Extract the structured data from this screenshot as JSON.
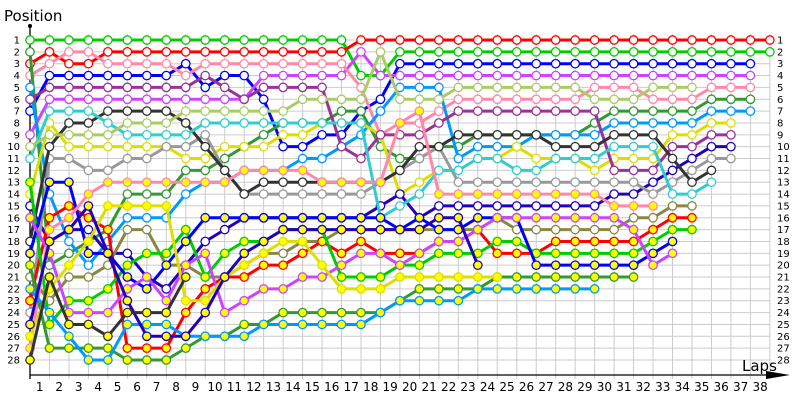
{
  "chart_data": {
    "type": "line",
    "ylabel": "Position",
    "xlabel": "Laps",
    "x_ticks": [
      1,
      2,
      3,
      4,
      5,
      6,
      7,
      8,
      9,
      10,
      11,
      12,
      13,
      14,
      15,
      16,
      17,
      18,
      19,
      20,
      21,
      22,
      23,
      24,
      25,
      26,
      27,
      28,
      29,
      30,
      31,
      32,
      33,
      34,
      35,
      36,
      37,
      38
    ],
    "y_ticks": [
      1,
      2,
      3,
      4,
      5,
      6,
      7,
      8,
      9,
      10,
      11,
      12,
      13,
      14,
      15,
      16,
      17,
      18,
      19,
      20,
      21,
      22,
      23,
      24,
      25,
      26,
      27,
      28
    ],
    "xlim": [
      0,
      38
    ],
    "ylim": [
      1,
      28
    ],
    "y_inverted": true,
    "grid": true,
    "series": [
      {
        "color": "#00cc00",
        "marker_fill": "#ffffff",
        "positions": [
          1,
          1,
          1,
          1,
          1,
          1,
          1,
          1,
          1,
          1,
          1,
          1,
          1,
          1,
          1,
          1,
          1,
          4,
          4,
          2,
          2,
          2,
          2,
          2,
          2,
          2,
          2,
          2,
          2,
          2,
          2,
          2,
          2,
          2,
          2,
          2,
          2,
          2,
          2
        ]
      },
      {
        "color": "#ff0000",
        "marker_fill": "#ffffff",
        "positions": [
          3,
          2,
          3,
          3,
          2,
          2,
          2,
          2,
          2,
          2,
          2,
          2,
          2,
          2,
          2,
          2,
          2,
          1,
          1,
          1,
          1,
          1,
          1,
          1,
          1,
          1,
          1,
          1,
          1,
          1,
          1,
          1,
          1,
          1,
          1,
          1,
          1,
          1,
          1
        ]
      },
      {
        "color": "#0000ff",
        "marker_fill": "#ffffff",
        "positions": [
          7,
          4,
          4,
          4,
          4,
          4,
          4,
          4,
          3,
          5,
          4,
          4,
          6,
          10,
          10,
          9,
          9,
          7,
          6,
          3,
          3,
          3,
          3,
          3,
          3,
          3,
          3,
          3,
          3,
          3,
          3,
          3,
          3,
          3,
          3,
          3,
          3,
          3
        ]
      },
      {
        "color": "#cc44ff",
        "marker_fill": "#ffffff",
        "positions": [
          9,
          6,
          6,
          6,
          6,
          6,
          6,
          6,
          6,
          6,
          6,
          6,
          4,
          4,
          4,
          4,
          4,
          2,
          4,
          4,
          4,
          4,
          4,
          4,
          4,
          4,
          4,
          4,
          4,
          4,
          4,
          4,
          4,
          4,
          4,
          4,
          4,
          4
        ]
      },
      {
        "color": "#ff88aa",
        "marker_fill": "#ffffff",
        "positions": [
          4,
          3,
          2,
          2,
          3,
          3,
          3,
          3,
          4,
          3,
          3,
          3,
          3,
          3,
          3,
          3,
          3,
          5,
          9,
          8,
          8,
          7,
          6,
          6,
          6,
          6,
          6,
          6,
          6,
          5,
          5,
          5,
          6,
          6,
          6,
          5,
          5,
          5
        ]
      },
      {
        "color": "#339933",
        "marker_fill": "#ffffff",
        "positions": [
          2,
          20,
          19,
          18,
          17,
          14,
          14,
          14,
          12,
          12,
          11,
          10,
          9,
          8,
          8,
          8,
          7,
          7,
          10,
          11,
          11,
          10,
          10,
          9,
          9,
          9,
          9,
          9,
          9,
          8,
          7,
          7,
          7,
          7,
          7,
          6,
          6,
          6
        ]
      },
      {
        "color": "#0099ff",
        "marker_fill": "#ffffff",
        "positions": [
          5,
          14,
          18,
          20,
          18,
          16,
          16,
          16,
          14,
          13,
          13,
          12,
          12,
          12,
          11,
          11,
          10,
          9,
          7,
          5,
          5,
          5,
          11,
          10,
          10,
          10,
          9,
          9,
          9,
          9,
          8,
          8,
          8,
          8,
          8,
          7,
          7,
          7
        ]
      },
      {
        "color": "#dddd00",
        "marker_fill": "#ffffff",
        "positions": [
          14,
          8,
          10,
          10,
          10,
          10,
          10,
          10,
          11,
          11,
          10,
          10,
          10,
          9,
          9,
          8,
          8,
          8,
          9,
          14,
          13,
          12,
          12,
          11,
          11,
          10,
          11,
          11,
          11,
          12,
          11,
          11,
          11,
          9,
          9,
          8,
          8
        ]
      },
      {
        "color": "#993399",
        "marker_fill": "#ffffff",
        "positions": [
          6,
          5,
          5,
          5,
          5,
          5,
          5,
          5,
          5,
          4,
          5,
          6,
          5,
          5,
          5,
          5,
          10,
          11,
          9,
          9,
          9,
          8,
          7,
          7,
          7,
          7,
          7,
          7,
          7,
          7,
          12,
          12,
          12,
          10,
          10,
          9,
          9
        ]
      },
      {
        "color": "#2200bb",
        "marker_fill": "#ffffff",
        "positions": [
          15,
          18,
          17,
          17,
          19,
          19,
          21,
          22,
          20,
          18,
          17,
          16,
          16,
          16,
          16,
          16,
          16,
          16,
          15,
          14,
          16,
          15,
          15,
          15,
          15,
          15,
          15,
          15,
          15,
          15,
          14,
          14,
          13,
          12,
          11,
          10,
          10
        ]
      },
      {
        "color": "#999999",
        "marker_fill": "#ffffff",
        "positions": [
          24,
          11,
          11,
          12,
          12,
          11,
          11,
          10,
          10,
          9,
          12,
          14,
          14,
          14,
          14,
          14,
          14,
          14,
          13,
          12,
          11,
          10,
          13,
          13,
          13,
          13,
          13,
          13,
          13,
          13,
          13,
          13,
          14,
          13,
          12,
          11,
          11
        ]
      },
      {
        "color": "#333333",
        "marker_fill": "#ffffff",
        "positions": [
          18,
          10,
          8,
          8,
          7,
          7,
          7,
          7,
          8,
          10,
          12,
          14,
          13,
          13,
          13,
          13,
          13,
          13,
          13,
          12,
          10,
          10,
          9,
          9,
          9,
          9,
          9,
          10,
          10,
          10,
          9,
          9,
          9,
          11,
          13,
          12
        ]
      },
      {
        "color": "#33cccc",
        "marker_fill": "#ffffff",
        "positions": [
          11,
          7,
          7,
          7,
          8,
          9,
          9,
          9,
          9,
          8,
          8,
          8,
          8,
          8,
          8,
          8,
          8,
          8,
          16,
          15,
          14,
          12,
          12,
          11,
          11,
          12,
          12,
          11,
          11,
          11,
          10,
          10,
          10,
          14,
          14,
          13
        ]
      },
      {
        "color": "#aacc66",
        "marker_fill": "#ffffff",
        "positions": [
          10,
          9,
          9,
          9,
          9,
          8,
          8,
          8,
          7,
          7,
          7,
          7,
          7,
          7,
          6,
          6,
          6,
          6,
          2,
          6,
          6,
          6,
          5,
          5,
          5,
          5,
          5,
          5,
          5,
          6,
          6,
          6,
          5,
          5,
          5
        ]
      },
      {
        "color": "#888844",
        "marker_fill": "#ffffff",
        "positions": [
          21,
          23,
          21,
          21,
          20,
          17,
          17,
          20,
          20,
          21,
          21,
          20,
          19,
          19,
          18,
          18,
          17,
          17,
          17,
          17,
          17,
          17,
          17,
          17,
          16,
          17,
          17,
          17,
          17,
          17,
          17,
          16,
          16,
          15,
          15
        ]
      },
      {
        "color": "#ff0000",
        "marker_fill": "#ffff00",
        "positions": [
          23,
          16,
          15,
          16,
          17,
          27,
          27,
          27,
          24,
          22,
          21,
          21,
          20,
          20,
          19,
          18,
          19,
          18,
          19,
          19,
          19,
          18,
          18,
          17,
          19,
          19,
          19,
          18,
          18,
          18,
          18,
          18,
          17,
          16,
          16
        ]
      },
      {
        "color": "#00cc00",
        "marker_fill": "#ffff00",
        "positions": [
          13,
          25,
          23,
          23,
          22,
          20,
          19,
          19,
          17,
          21,
          19,
          18,
          18,
          17,
          17,
          17,
          21,
          21,
          21,
          20,
          20,
          19,
          19,
          19,
          18,
          18,
          19,
          19,
          19,
          19,
          19,
          19,
          18,
          17,
          17
        ]
      },
      {
        "color": "#0000ff",
        "marker_fill": "#ffff00",
        "positions": [
          19,
          13,
          13,
          19,
          19,
          21,
          22,
          20,
          18,
          16,
          16,
          16,
          16,
          16,
          16,
          16,
          16,
          16,
          16,
          17,
          16,
          17,
          17,
          16,
          16,
          16,
          20,
          20,
          20,
          20,
          20,
          20,
          19,
          18
        ]
      },
      {
        "color": "#cc44ff",
        "marker_fill": "#ffff00",
        "positions": [
          16,
          19,
          24,
          24,
          24,
          22,
          21,
          23,
          20,
          19,
          24,
          23,
          22,
          22,
          21,
          21,
          20,
          19,
          19,
          20,
          19,
          18,
          18,
          17,
          16,
          16,
          16,
          16,
          16,
          16,
          16,
          17,
          20,
          19
        ]
      },
      {
        "color": "#ff88aa",
        "marker_fill": "#ffff00",
        "positions": [
          27,
          17,
          16,
          14,
          13,
          13,
          13,
          13,
          13,
          13,
          13,
          12,
          12,
          12,
          12,
          13,
          13,
          13,
          13,
          8,
          7,
          14,
          14,
          14,
          14,
          14,
          14,
          14,
          14,
          14,
          15,
          15,
          15
        ]
      },
      {
        "color": "#339933",
        "marker_fill": "#ffff00",
        "positions": [
          20,
          27,
          27,
          27,
          27,
          28,
          28,
          28,
          27,
          26,
          26,
          25,
          25,
          24,
          24,
          24,
          24,
          24,
          24,
          23,
          22,
          22,
          22,
          22,
          21,
          21,
          21,
          21,
          21,
          21,
          21,
          21
        ]
      },
      {
        "color": "#0099ff",
        "marker_fill": "#ffff00",
        "positions": [
          22,
          24,
          26,
          28,
          28,
          25,
          25,
          25,
          26,
          26,
          26,
          26,
          25,
          25,
          25,
          25,
          25,
          25,
          24,
          23,
          23,
          23,
          23,
          22,
          22,
          22,
          22,
          22,
          22,
          22
        ]
      },
      {
        "color": "#dddd00",
        "marker_fill": "#ffff00",
        "positions": [
          26,
          22,
          20,
          18,
          15,
          15,
          15,
          15,
          23,
          23,
          21,
          20,
          19,
          18,
          18,
          20,
          22,
          22,
          22,
          21,
          21,
          21,
          21,
          21,
          21
        ]
      },
      {
        "color": "#2200bb",
        "marker_fill": "#ffff00",
        "positions": [
          25,
          18,
          17,
          15,
          19,
          23,
          26,
          26,
          26,
          24,
          21,
          19,
          18,
          17,
          17,
          17,
          17,
          17,
          17,
          17,
          17,
          16,
          16,
          20
        ]
      },
      {
        "color": "#333333",
        "marker_fill": "#ffff00",
        "positions": [
          28,
          21,
          25,
          25,
          26,
          24,
          24,
          24,
          21
        ]
      }
    ]
  }
}
